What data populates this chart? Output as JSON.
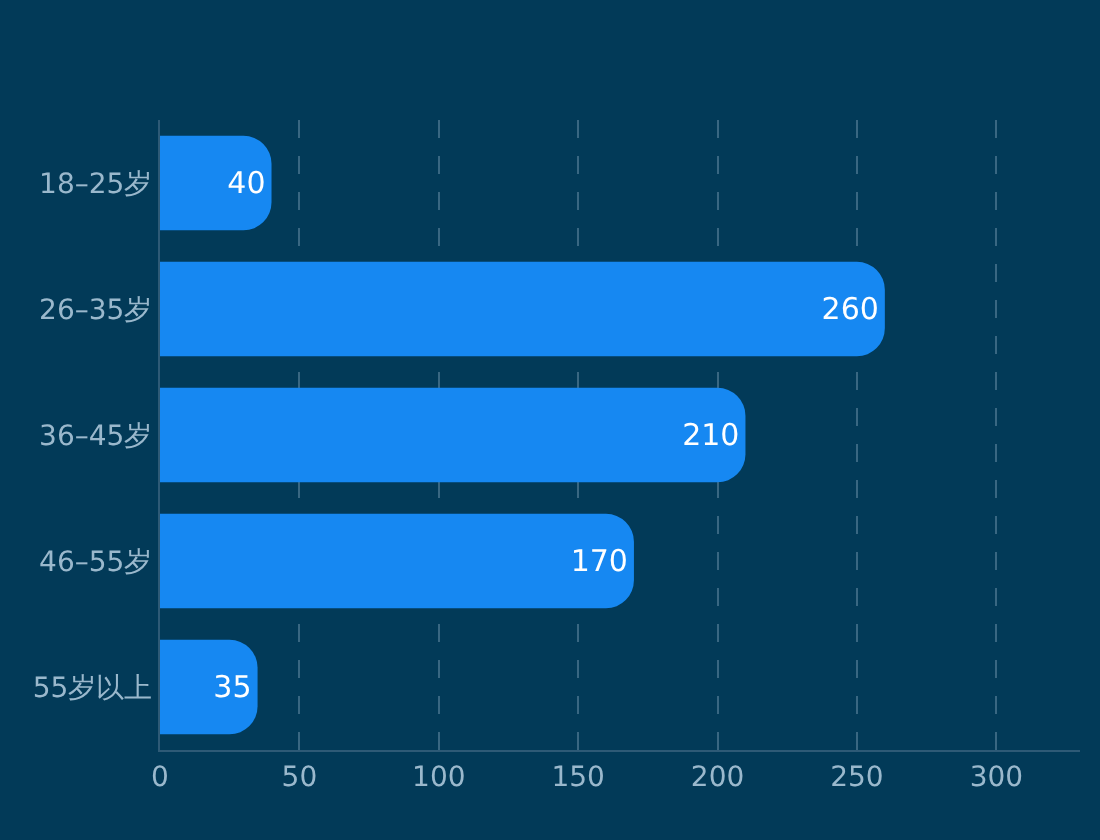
{
  "chart_data": {
    "type": "bar",
    "orientation": "horizontal",
    "categories": [
      "18–25岁",
      "26–35岁",
      "36–45岁",
      "46–55岁",
      "55岁以上"
    ],
    "values": [
      40,
      260,
      210,
      170,
      35
    ],
    "color": "#1688f2",
    "xlim": [
      0,
      330
    ],
    "xticks": [
      0,
      50,
      100,
      150,
      200,
      250,
      300
    ],
    "grid": "x",
    "data_labels": true,
    "legend": false
  }
}
